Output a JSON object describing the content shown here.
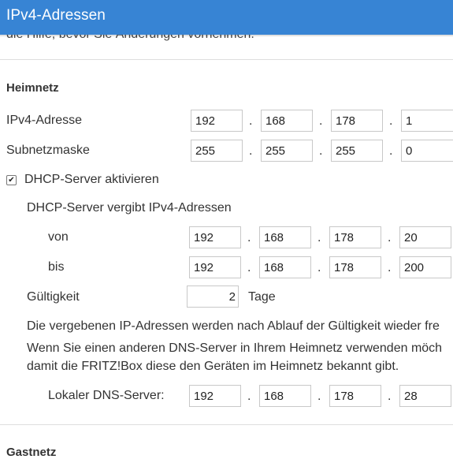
{
  "header": {
    "title": "IPv4-Adressen"
  },
  "intro_cut": "die Hilfe, bevor Sie Änderungen vornehmen.",
  "heimnetz": {
    "heading": "Heimnetz",
    "ip_label": "IPv4-Adresse",
    "ip": [
      "192",
      "168",
      "178",
      "1"
    ],
    "mask_label": "Subnetzmaske",
    "mask": [
      "255",
      "255",
      "255",
      "0"
    ],
    "dot": "."
  },
  "dhcp": {
    "checkbox_label": "DHCP-Server aktivieren",
    "checked": true,
    "check_glyph": "✔",
    "range_label": "DHCP-Server vergibt IPv4-Adressen",
    "from_label": "von",
    "from": [
      "192",
      "168",
      "178",
      "20"
    ],
    "to_label": "bis",
    "to": [
      "192",
      "168",
      "178",
      "200"
    ],
    "validity_label": "Gültigkeit",
    "validity_value": "2",
    "validity_unit": "Tage",
    "info1": "Die vergebenen IP-Adressen werden nach Ablauf der Gültigkeit wieder fre",
    "info2": "Wenn Sie einen anderen DNS-Server in Ihrem Heimnetz verwenden möch",
    "info3": "damit die FRITZ!Box diese den Geräten im Heimnetz bekannt gibt.",
    "dns_label": "Lokaler DNS-Server:",
    "dns": [
      "192",
      "168",
      "178",
      "28"
    ]
  },
  "gastnetz": {
    "heading": "Gastnetz"
  },
  "colors": {
    "header_bg": "#3784d4",
    "divider": "#dedede",
    "field_border": "#c8c8c8"
  }
}
